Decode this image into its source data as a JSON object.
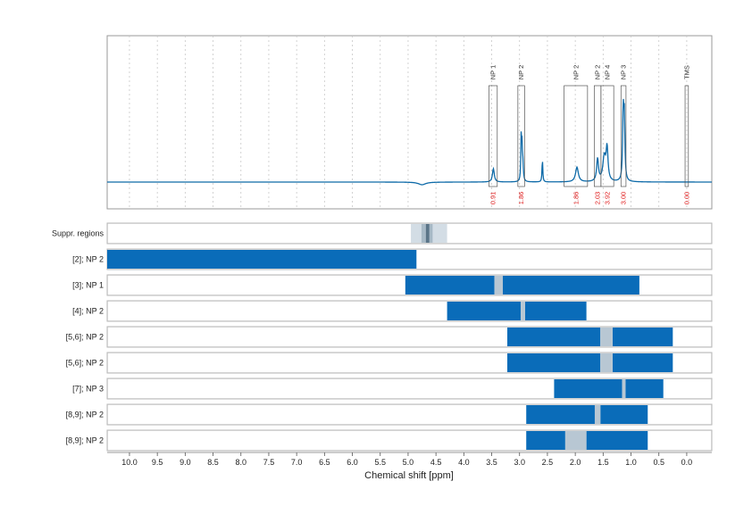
{
  "colors": {
    "spectrum": "#0d6aa8",
    "bar": "#0a6cb9",
    "row_bg": "#ededed",
    "row_border": "#b7b7b7",
    "gap": "#b8c7d3",
    "suppr_light": "#d3dde5",
    "suppr_mid": "#a7b9c6",
    "suppr_dark": "#5b7588",
    "integral_text": "#e01b1b",
    "grid": "#c8c8c8"
  },
  "chart_data": {
    "type": "nmr-spectrum-with-region-bars",
    "xlabel": "Chemical shift [ppm]",
    "x_direction": "reversed",
    "xlim": [
      10.4,
      -0.45
    ],
    "x_ticks": [
      10.0,
      9.5,
      9.0,
      8.5,
      8.0,
      7.5,
      7.0,
      6.5,
      6.0,
      5.5,
      5.0,
      4.5,
      4.0,
      3.5,
      3.0,
      2.5,
      2.0,
      1.5,
      1.0,
      0.5,
      0.0
    ],
    "x_tick_labels": [
      "10.0",
      "9.5",
      "9.0",
      "8.5",
      "8.0",
      "7.5",
      "7.0",
      "6.5",
      "6.0",
      "5.5",
      "5.0",
      "4.5",
      "4.0",
      "3.5",
      "3.0",
      "2.5",
      "2.0",
      "1.5",
      "1.0",
      "0.5",
      "0.0"
    ],
    "grid": true,
    "spectrum_peaks": [
      {
        "ppm": 3.47,
        "height": 0.1,
        "width": 0.02
      },
      {
        "ppm": 2.97,
        "height": 0.34,
        "width": 0.008
      },
      {
        "ppm": 2.955,
        "height": 0.22,
        "width": 0.008
      },
      {
        "ppm": 2.94,
        "height": 0.12,
        "width": 0.01
      },
      {
        "ppm": 2.59,
        "height": 0.17,
        "width": 0.008
      },
      {
        "ppm": 1.97,
        "height": 0.11,
        "width": 0.03
      },
      {
        "ppm": 1.6,
        "height": 0.17,
        "width": 0.02
      },
      {
        "ppm": 1.48,
        "height": 0.18,
        "width": 0.03
      },
      {
        "ppm": 1.43,
        "height": 0.24,
        "width": 0.02
      },
      {
        "ppm": 1.14,
        "height": 0.5,
        "width": 0.012
      },
      {
        "ppm": 1.12,
        "height": 0.45,
        "width": 0.012
      },
      {
        "ppm": 4.75,
        "height": -0.02,
        "width": 0.08
      }
    ],
    "annotations": [
      {
        "label": "NP 1",
        "from": 3.55,
        "to": 3.4,
        "integral": "0.91"
      },
      {
        "label": "NP 2",
        "from": 3.03,
        "to": 2.91,
        "integral": "1.86"
      },
      {
        "label": "NP 2",
        "from": 2.2,
        "to": 1.78,
        "integral": "1.86"
      },
      {
        "label": "NP 2",
        "from": 1.66,
        "to": 1.54,
        "integral": "2.03"
      },
      {
        "label": "NP 4",
        "from": 1.54,
        "to": 1.31,
        "integral": "3.92"
      },
      {
        "label": "NP 3",
        "from": 1.18,
        "to": 1.09,
        "integral": "3.00"
      },
      {
        "label": "TMS",
        "from": 0.03,
        "to": -0.03,
        "integral": "0.00"
      }
    ],
    "suppr_regions": {
      "label": "Suppr. regions",
      "bands": [
        {
          "from": 4.95,
          "to": 4.3,
          "level": "light"
        },
        {
          "from": 4.76,
          "to": 4.56,
          "level": "mid"
        },
        {
          "from": 4.68,
          "to": 4.62,
          "level": "dark"
        }
      ]
    },
    "rows": [
      {
        "label": "[2]; NP 2",
        "segments": [
          [
            10.4,
            4.85
          ]
        ],
        "gaps": []
      },
      {
        "label": "[3]; NP 1",
        "segments": [
          [
            5.05,
            3.45
          ],
          [
            3.3,
            0.85
          ]
        ],
        "gaps": [
          [
            3.45,
            3.3
          ]
        ]
      },
      {
        "label": "[4]; NP 2",
        "segments": [
          [
            4.3,
            2.98
          ],
          [
            2.9,
            1.8
          ]
        ],
        "gaps": [
          [
            2.98,
            2.9
          ]
        ]
      },
      {
        "label": "[5,6]; NP 2",
        "segments": [
          [
            3.22,
            1.55
          ],
          [
            1.33,
            0.25
          ]
        ],
        "gaps": [
          [
            1.55,
            1.33
          ]
        ]
      },
      {
        "label": "[5,6]; NP 2",
        "segments": [
          [
            3.22,
            1.55
          ],
          [
            1.33,
            0.25
          ]
        ],
        "gaps": [
          [
            1.55,
            1.33
          ]
        ]
      },
      {
        "label": "[7]; NP 3",
        "segments": [
          [
            2.38,
            1.16
          ],
          [
            1.1,
            0.42
          ]
        ],
        "gaps": [
          [
            1.16,
            1.1
          ]
        ]
      },
      {
        "label": "[8,9]; NP 2",
        "segments": [
          [
            2.88,
            1.65
          ],
          [
            1.55,
            0.7
          ]
        ],
        "gaps": [
          [
            1.65,
            1.55
          ]
        ]
      },
      {
        "label": "[8,9]; NP 2",
        "segments": [
          [
            2.88,
            2.18
          ],
          [
            1.8,
            0.7
          ]
        ],
        "gaps": [
          [
            2.18,
            1.8
          ]
        ]
      }
    ]
  }
}
